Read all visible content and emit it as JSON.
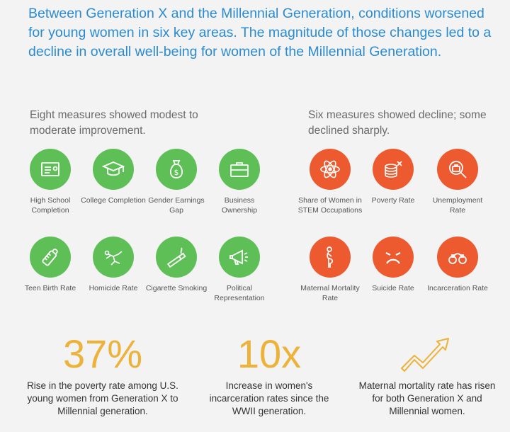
{
  "headline": "Between Generation X and the Millennial Generation, conditions worsened for young women in six key areas. The magnitude of those changes led to a decline in overall well-being for women of the Millennial Generation.",
  "improvement": {
    "heading": "Eight measures showed modest to moderate improvement.",
    "color": "#5fbf57",
    "items": [
      {
        "label": "High School Completion",
        "icon": "diploma-icon"
      },
      {
        "label": "College Completion",
        "icon": "graduation-cap-icon"
      },
      {
        "label": "Gender Earnings Gap",
        "icon": "money-bag-icon"
      },
      {
        "label": "Business Ownership",
        "icon": "briefcase-icon"
      },
      {
        "label": "Teen Birth Rate",
        "icon": "baby-bottle-icon"
      },
      {
        "label": "Homicide Rate",
        "icon": "chalk-outline-icon"
      },
      {
        "label": "Cigarette Smoking",
        "icon": "cigarette-icon"
      },
      {
        "label": "Political Representation",
        "icon": "megaphone-icon"
      }
    ]
  },
  "decline": {
    "heading": "Six measures showed decline; some declined sharply.",
    "color": "#ee5a2f",
    "items": [
      {
        "label": "Share of Women in STEM Occupations",
        "icon": "atom-icon"
      },
      {
        "label": "Poverty Rate",
        "icon": "coins-icon"
      },
      {
        "label": "Unemployment Rate",
        "icon": "job-search-icon"
      },
      {
        "label": "Maternal Mortality Rate",
        "icon": "pregnant-woman-icon"
      },
      {
        "label": "Suicide Rate",
        "icon": "sad-face-icon"
      },
      {
        "label": "Incarceration Rate",
        "icon": "handcuffs-icon"
      }
    ]
  },
  "stats": [
    {
      "value": "37%",
      "description": "Rise in the poverty rate among U.S. young women from Generation X to Millennial generation."
    },
    {
      "value": "10x",
      "description": "Increase in women's incarceration rates since the WWII generation."
    },
    {
      "icon": "rising-arrow-icon",
      "description": "Maternal mortality rate has risen for both Generation X and Millennial women."
    }
  ],
  "accent_color": "#ecb23a"
}
